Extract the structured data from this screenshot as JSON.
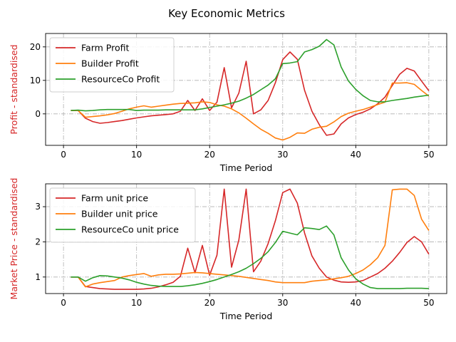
{
  "figure": {
    "title": "Key Economic Metrics"
  },
  "chart_data": [
    {
      "type": "line",
      "xlabel": "Time Period",
      "ylabel": "Profit - standardised",
      "ylabel_color": "#d62728",
      "xlim": [
        -2.45,
        52.45
      ],
      "ylim": [
        -9.4,
        24.0
      ],
      "xticks": [
        0,
        10,
        20,
        30,
        40,
        50
      ],
      "yticks": [
        0,
        10,
        20
      ],
      "grid": true,
      "legend": "upper-left",
      "x": [
        1,
        2,
        3,
        4,
        5,
        6,
        7,
        8,
        9,
        10,
        11,
        12,
        13,
        14,
        15,
        16,
        17,
        18,
        19,
        20,
        21,
        22,
        23,
        24,
        25,
        26,
        27,
        28,
        29,
        30,
        31,
        32,
        33,
        34,
        35,
        36,
        37,
        38,
        39,
        40,
        41,
        42,
        43,
        44,
        45,
        46,
        47,
        48,
        49,
        50
      ],
      "series": [
        {
          "name": "Farm Profit",
          "color": "#d62728",
          "values": [
            1.0,
            1.0,
            -1.3,
            -2.3,
            -2.8,
            -2.6,
            -2.3,
            -2.0,
            -1.6,
            -1.2,
            -0.9,
            -0.6,
            -0.4,
            -0.2,
            0.0,
            0.8,
            4.0,
            1.0,
            4.5,
            1.0,
            3.5,
            13.8,
            1.8,
            6.2,
            15.7,
            0.0,
            1.2,
            4.0,
            9.3,
            16.2,
            18.5,
            16.3,
            7.0,
            0.8,
            -3.2,
            -6.4,
            -6.0,
            -3.0,
            -1.2,
            -0.2,
            0.5,
            1.5,
            3.0,
            5.0,
            8.5,
            11.8,
            13.6,
            12.8,
            9.8,
            6.9
          ]
        },
        {
          "name": "Builder Profit",
          "color": "#ff7f0e",
          "values": [
            1.0,
            1.0,
            -1.0,
            -0.8,
            -0.6,
            -0.3,
            0.1,
            0.8,
            1.5,
            2.0,
            2.4,
            2.0,
            2.3,
            2.6,
            2.9,
            3.1,
            3.2,
            3.3,
            3.6,
            3.4,
            2.7,
            2.3,
            1.5,
            0.3,
            -1.3,
            -3.0,
            -4.6,
            -5.8,
            -7.2,
            -7.8,
            -7.0,
            -5.7,
            -5.8,
            -4.6,
            -4.0,
            -3.7,
            -2.4,
            -0.8,
            0.2,
            0.8,
            1.3,
            2.0,
            2.8,
            3.5,
            9.2,
            9.2,
            9.3,
            8.8,
            7.0,
            5.3
          ]
        },
        {
          "name": "ResourceCo Profit",
          "color": "#2ca02c",
          "values": [
            1.0,
            1.1,
            0.9,
            1.0,
            1.2,
            1.3,
            1.3,
            1.3,
            1.3,
            1.0,
            1.1,
            1.1,
            1.1,
            1.2,
            1.2,
            1.2,
            1.2,
            1.2,
            1.5,
            1.9,
            2.3,
            2.7,
            3.2,
            3.8,
            4.7,
            5.8,
            7.2,
            8.6,
            10.5,
            15.0,
            15.2,
            15.6,
            18.5,
            19.2,
            20.2,
            22.2,
            20.6,
            14.0,
            9.8,
            7.3,
            5.4,
            4.0,
            3.6,
            3.6,
            4.0,
            4.3,
            4.6,
            5.0,
            5.3,
            5.6
          ]
        }
      ]
    },
    {
      "type": "line",
      "xlabel": "Time Period",
      "ylabel": "Market Price - standardised",
      "ylabel_color": "#d62728",
      "xlim": [
        -2.45,
        52.45
      ],
      "ylim": [
        0.53,
        3.65
      ],
      "xticks": [
        0,
        10,
        20,
        30,
        40,
        50
      ],
      "yticks": [
        1,
        2,
        3
      ],
      "grid": true,
      "legend": "upper-left",
      "x": [
        1,
        2,
        3,
        4,
        5,
        6,
        7,
        8,
        9,
        10,
        11,
        12,
        13,
        14,
        15,
        16,
        17,
        18,
        19,
        20,
        21,
        22,
        23,
        24,
        25,
        26,
        27,
        28,
        29,
        30,
        31,
        32,
        33,
        34,
        35,
        36,
        37,
        38,
        39,
        40,
        41,
        42,
        43,
        44,
        45,
        46,
        47,
        48,
        49,
        50
      ],
      "series": [
        {
          "name": "Farm unit price",
          "color": "#d62728",
          "values": [
            1.0,
            1.0,
            0.73,
            0.7,
            0.67,
            0.66,
            0.65,
            0.65,
            0.65,
            0.65,
            0.66,
            0.68,
            0.72,
            0.78,
            0.85,
            1.02,
            1.82,
            1.12,
            1.9,
            1.05,
            1.62,
            3.5,
            1.28,
            2.05,
            3.5,
            1.15,
            1.45,
            1.95,
            2.6,
            3.4,
            3.5,
            3.1,
            2.25,
            1.6,
            1.25,
            1.0,
            0.91,
            0.86,
            0.85,
            0.86,
            0.9,
            1.0,
            1.1,
            1.25,
            1.45,
            1.7,
            1.98,
            2.15,
            2.0,
            1.65
          ]
        },
        {
          "name": "Builder unit price",
          "color": "#ff7f0e",
          "values": [
            1.0,
            1.0,
            0.72,
            0.8,
            0.84,
            0.87,
            0.9,
            1.0,
            1.04,
            1.07,
            1.1,
            1.02,
            1.06,
            1.08,
            1.08,
            1.09,
            1.11,
            1.13,
            1.12,
            1.1,
            1.08,
            1.06,
            1.04,
            1.02,
            0.99,
            0.96,
            0.93,
            0.9,
            0.86,
            0.84,
            0.84,
            0.84,
            0.84,
            0.88,
            0.9,
            0.92,
            0.95,
            0.98,
            1.02,
            1.1,
            1.2,
            1.35,
            1.55,
            1.9,
            3.48,
            3.5,
            3.5,
            3.32,
            2.65,
            2.32
          ]
        },
        {
          "name": "ResourceCo unit price",
          "color": "#2ca02c",
          "values": [
            1.0,
            1.0,
            0.88,
            0.98,
            1.04,
            1.03,
            1.0,
            0.97,
            0.92,
            0.85,
            0.8,
            0.76,
            0.74,
            0.73,
            0.73,
            0.73,
            0.75,
            0.78,
            0.82,
            0.87,
            0.93,
            1.0,
            1.07,
            1.15,
            1.25,
            1.38,
            1.53,
            1.72,
            1.98,
            2.3,
            2.25,
            2.2,
            2.4,
            2.38,
            2.35,
            2.45,
            2.2,
            1.55,
            1.2,
            0.95,
            0.8,
            0.7,
            0.67,
            0.67,
            0.67,
            0.67,
            0.68,
            0.68,
            0.68,
            0.67
          ]
        }
      ]
    }
  ]
}
